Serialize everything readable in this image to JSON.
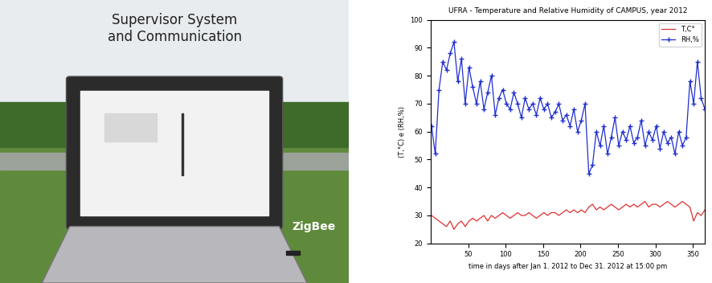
{
  "photo": {
    "title": "Supervisor System\nand Communication",
    "label": "ZigBee"
  },
  "chart_data": {
    "type": "line",
    "title": "UFRA - Temperature and Relative Humidity of CAMPUS, year 2012",
    "x_label": "time in days after Jan 1. 2012 to Dec 31. 2012 at 15:00 pm",
    "y_label": "(T,°C) e (RH,%)",
    "x": [
      1,
      6,
      11,
      16,
      21,
      26,
      31,
      36,
      41,
      46,
      51,
      56,
      61,
      66,
      71,
      76,
      81,
      86,
      91,
      96,
      101,
      106,
      111,
      116,
      121,
      126,
      131,
      136,
      141,
      146,
      151,
      156,
      161,
      166,
      171,
      176,
      181,
      186,
      191,
      196,
      201,
      206,
      211,
      216,
      221,
      226,
      231,
      236,
      241,
      246,
      251,
      256,
      261,
      266,
      271,
      276,
      281,
      286,
      291,
      296,
      301,
      306,
      311,
      316,
      321,
      326,
      331,
      336,
      341,
      346,
      351,
      356,
      361,
      366
    ],
    "series": [
      {
        "name": "T,C°",
        "color": "#e03030",
        "line_style": "solid",
        "values": [
          30,
          29,
          28,
          27,
          26,
          28,
          25,
          27,
          28,
          26,
          28,
          29,
          28,
          29,
          30,
          28,
          30,
          29,
          30,
          31,
          30,
          29,
          30,
          31,
          30,
          30,
          31,
          30,
          29,
          30,
          31,
          30,
          31,
          31,
          30,
          31,
          32,
          31,
          32,
          31,
          32,
          31,
          33,
          34,
          32,
          33,
          32,
          33,
          34,
          33,
          32,
          33,
          34,
          33,
          34,
          33,
          34,
          35,
          33,
          34,
          34,
          33,
          34,
          35,
          34,
          33,
          34,
          35,
          34,
          33,
          28,
          31,
          30,
          32
        ]
      },
      {
        "name": "RH,%",
        "color": "#1f2fd0",
        "line_style": "solid",
        "marker": "+",
        "values": [
          62,
          52,
          75,
          85,
          82,
          88,
          92,
          78,
          86,
          70,
          83,
          76,
          70,
          78,
          68,
          74,
          80,
          66,
          72,
          75,
          70,
          68,
          74,
          70,
          65,
          72,
          68,
          70,
          66,
          72,
          68,
          70,
          65,
          67,
          70,
          64,
          66,
          62,
          68,
          60,
          64,
          70,
          45,
          48,
          60,
          55,
          62,
          52,
          58,
          65,
          55,
          60,
          57,
          62,
          56,
          58,
          64,
          55,
          60,
          57,
          62,
          54,
          60,
          56,
          58,
          52,
          60,
          55,
          58,
          78,
          70,
          85,
          72,
          68
        ]
      }
    ],
    "xlim": [
      0,
      366
    ],
    "xticks": [
      50,
      100,
      150,
      200,
      250,
      300,
      350
    ],
    "ylim": [
      20,
      100
    ],
    "yticks": [
      20,
      30,
      40,
      50,
      60,
      70,
      80,
      90,
      100
    ],
    "legend": "upper right",
    "grid": false
  }
}
